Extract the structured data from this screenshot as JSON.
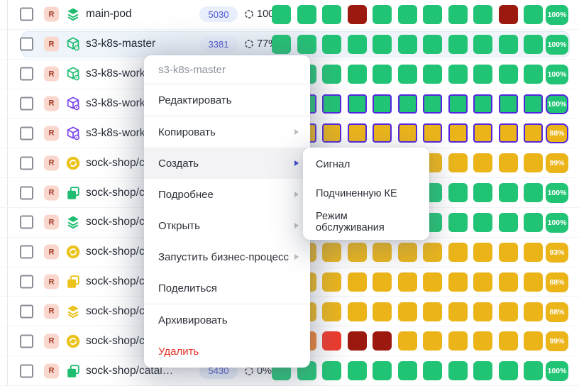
{
  "colors": {
    "green": "#21c474",
    "yellow": "#ebb51a",
    "orange": "#ee7f2d",
    "red": "#ee392b",
    "dark_red": "#9c190f",
    "selection_border": "#5226df",
    "accent_blue": "#3a43cf",
    "danger": "#e23527"
  },
  "context_menu": {
    "title": "s3-k8s-master",
    "items": [
      {
        "name": "edit",
        "label": "Редактировать"
      },
      {
        "name": "copy",
        "label": "Копировать",
        "submenu": true,
        "divider_before": true
      },
      {
        "name": "create",
        "label": "Создать",
        "submenu": true,
        "active": true
      },
      {
        "name": "details",
        "label": "Подробнее",
        "submenu": true
      },
      {
        "name": "open",
        "label": "Открыть",
        "submenu": true
      },
      {
        "name": "run-business-process",
        "label": "Запустить бизнес-процесс",
        "submenu": true
      },
      {
        "name": "share",
        "label": "Поделиться"
      },
      {
        "name": "archive",
        "label": "Архивировать",
        "divider_before": true
      },
      {
        "name": "delete",
        "label": "Удалить",
        "danger": true
      }
    ]
  },
  "create_submenu": {
    "items": [
      {
        "name": "signal",
        "label": "Сигнал"
      },
      {
        "name": "child-ci",
        "label": "Подчиненную КЕ"
      },
      {
        "name": "maintenance-mode",
        "label": "Режим обслуживания"
      }
    ]
  },
  "rows": [
    {
      "type_badge": "R",
      "icon": "layers-icon",
      "icon_color": "green",
      "name": "main-pod",
      "count": "5030",
      "availability": "100%",
      "tiles": [
        "green",
        "green",
        "green",
        "dark_red",
        "green",
        "green",
        "green",
        "green",
        "green",
        "dark_red",
        "green"
      ],
      "score": "100%",
      "score_color": "green"
    },
    {
      "type_badge": "R",
      "icon": "cube-gear-icon",
      "icon_color": "green",
      "name": "s3-k8s-master",
      "count": "3381",
      "availability": "77%",
      "highlighted": true,
      "tiles": [
        "green",
        "green",
        "green",
        "green",
        "green",
        "green",
        "green",
        "green",
        "green",
        "green",
        "green"
      ],
      "score": "100%",
      "score_color": "green"
    },
    {
      "type_badge": "R",
      "icon": "cube-gear-icon",
      "icon_color": "green",
      "name": "s3-k8s-worker-1",
      "tiles": [
        "green",
        "green",
        "green",
        "green",
        "green",
        "green",
        "green",
        "green",
        "green",
        "green",
        "green"
      ],
      "score": "100%",
      "score_color": "green"
    },
    {
      "type_badge": "R",
      "icon": "cube-gear-icon",
      "icon_color": "purple",
      "name": "s3-k8s-worker-2",
      "selected": true,
      "tiles": [
        "green",
        "green",
        "green",
        "green",
        "green",
        "green",
        "green",
        "green",
        "green",
        "green",
        "green"
      ],
      "score": "100%",
      "score_color": "green"
    },
    {
      "type_badge": "R",
      "icon": "cube-gear-icon",
      "icon_color": "purple",
      "name": "s3-k8s-worker-3",
      "selected": true,
      "tiles": [
        "yellow",
        "yellow",
        "yellow",
        "yellow",
        "yellow",
        "yellow",
        "yellow",
        "yellow",
        "yellow",
        "yellow",
        "yellow"
      ],
      "score": "88%",
      "score_color": "yellow"
    },
    {
      "type_badge": "R",
      "icon": "sync-icon",
      "icon_color": "yellow",
      "name": "sock-shop/carts",
      "tiles": [
        "yellow",
        "yellow",
        "yellow",
        "yellow",
        "yellow",
        "yellow",
        "yellow",
        "yellow",
        "yellow",
        "yellow",
        "yellow"
      ],
      "score": "99%",
      "score_color": "yellow"
    },
    {
      "type_badge": "R",
      "icon": "copy-icon",
      "icon_color": "green",
      "name": "sock-shop/carts-",
      "tiles": [
        "green",
        "green",
        "green",
        "green",
        "green",
        "green",
        "green",
        "green",
        "green",
        "green",
        "green"
      ],
      "score": "100%",
      "score_color": "green"
    },
    {
      "type_badge": "R",
      "icon": "layers-icon",
      "icon_color": "green",
      "name": "sock-shop/carts-",
      "tiles": [
        "green",
        "green",
        "green",
        "green",
        "green",
        "green",
        "green",
        "green",
        "green",
        "green",
        "green"
      ],
      "score": "100%",
      "score_color": "green"
    },
    {
      "type_badge": "R",
      "icon": "sync-icon",
      "icon_color": "yellow",
      "name": "sock-shop/carts-",
      "tiles": [
        "yellow",
        "yellow",
        "yellow",
        "yellow",
        "yellow",
        "yellow",
        "yellow",
        "yellow",
        "yellow",
        "yellow",
        "yellow"
      ],
      "score": "93%",
      "score_color": "yellow"
    },
    {
      "type_badge": "R",
      "icon": "copy-icon",
      "icon_color": "yellow",
      "name": "sock-shop/carts-",
      "tiles": [
        "yellow",
        "yellow",
        "yellow",
        "yellow",
        "yellow",
        "yellow",
        "yellow",
        "yellow",
        "yellow",
        "yellow",
        "yellow"
      ],
      "score": "88%",
      "score_color": "yellow"
    },
    {
      "type_badge": "R",
      "icon": "layers-icon",
      "icon_color": "yellow",
      "name": "sock-shop/carts-",
      "tiles": [
        "yellow",
        "yellow",
        "yellow",
        "yellow",
        "yellow",
        "yellow",
        "yellow",
        "yellow",
        "yellow",
        "yellow",
        "yellow"
      ],
      "score": "88%",
      "score_color": "yellow"
    },
    {
      "type_badge": "R",
      "icon": "sync-icon",
      "icon_color": "yellow",
      "name": "sock-shop/catal.",
      "tiles": [
        "orange",
        "orange",
        "red",
        "dark_red",
        "dark_red",
        "yellow",
        "yellow",
        "yellow",
        "yellow",
        "yellow",
        "yellow"
      ],
      "score": "99%",
      "score_color": "yellow"
    },
    {
      "type_badge": "R",
      "icon": "copy-icon",
      "icon_color": "green",
      "name": "sock-shop/catal…",
      "count": "5430",
      "availability": "0%",
      "tiles": [
        "green",
        "green",
        "green",
        "green",
        "green",
        "green",
        "green",
        "green",
        "green",
        "green",
        "green"
      ],
      "score": "100%",
      "score_color": "green"
    }
  ]
}
